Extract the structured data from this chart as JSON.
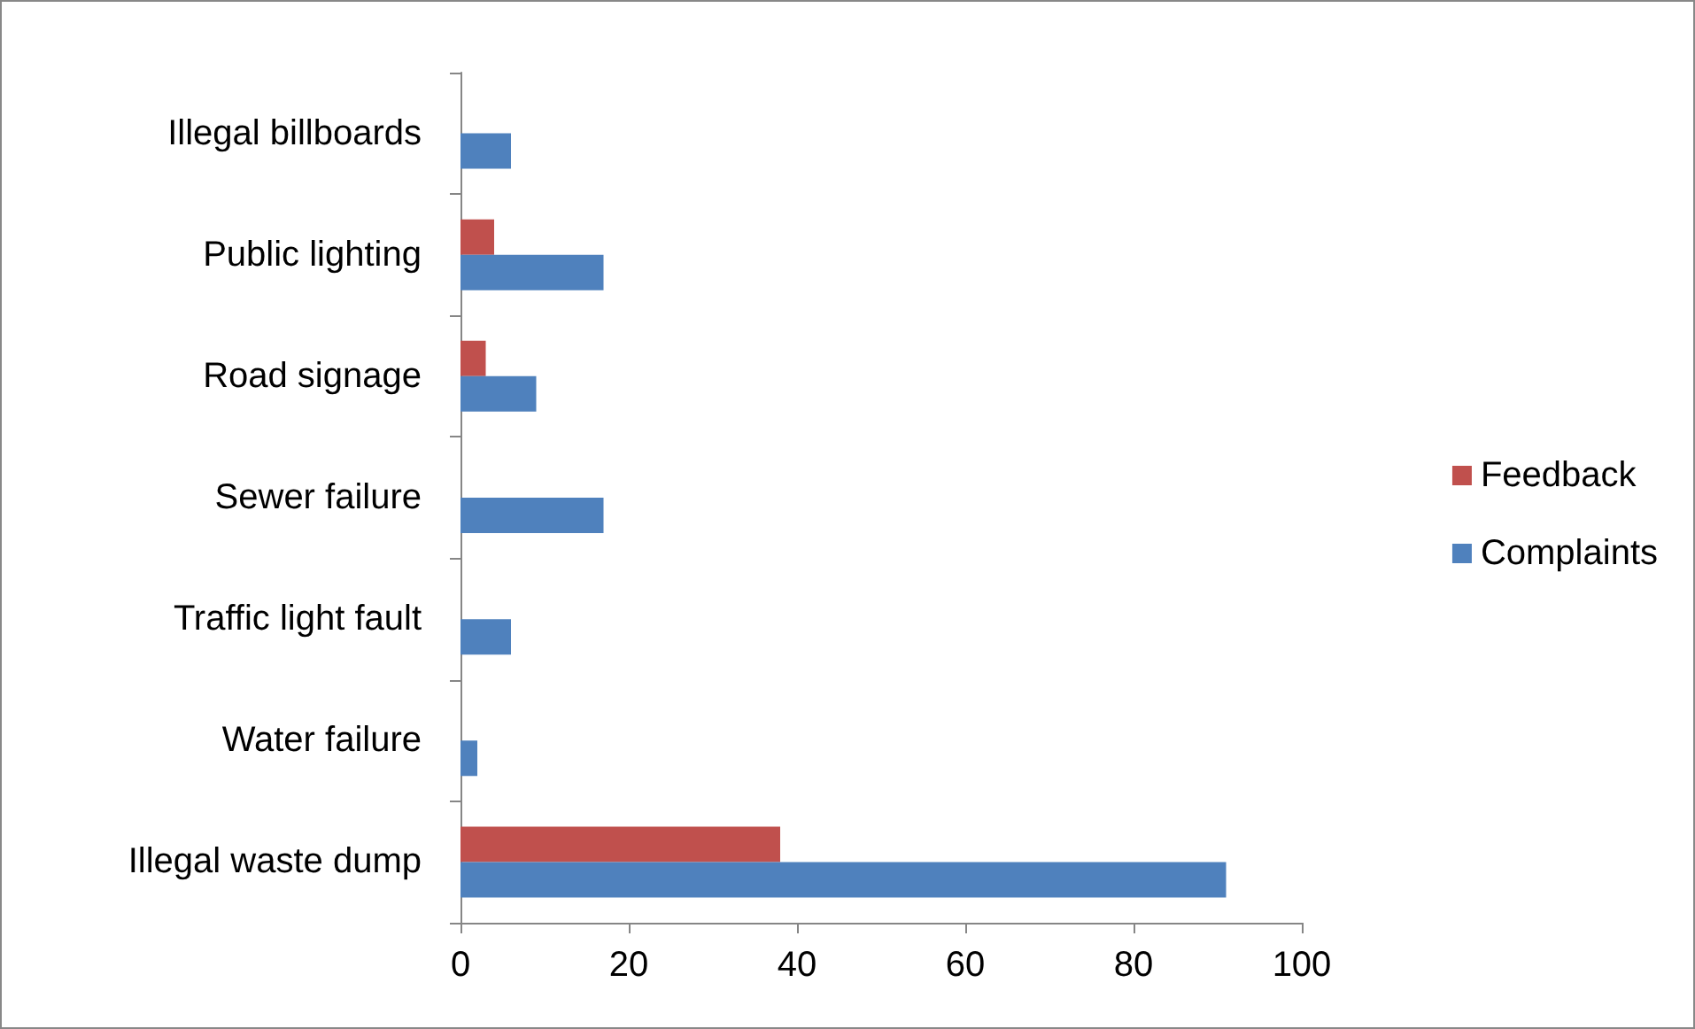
{
  "chart_data": {
    "type": "bar",
    "orientation": "horizontal",
    "categories": [
      "Illegal billboards",
      "Public lighting",
      "Road signage",
      "Sewer failure",
      "Traffic light fault",
      "Water failure",
      "Illegal waste dump"
    ],
    "series": [
      {
        "name": "Feedback",
        "color": "#c0504d",
        "values": [
          0,
          4,
          3,
          0,
          0,
          0,
          38
        ]
      },
      {
        "name": "Complaints",
        "color": "#4f81bd",
        "values": [
          6,
          17,
          9,
          17,
          6,
          2,
          91
        ]
      }
    ],
    "xlim": [
      0,
      100
    ],
    "xticks": [
      0,
      20,
      40,
      60,
      80,
      100
    ],
    "grid": false,
    "legend": "right"
  }
}
